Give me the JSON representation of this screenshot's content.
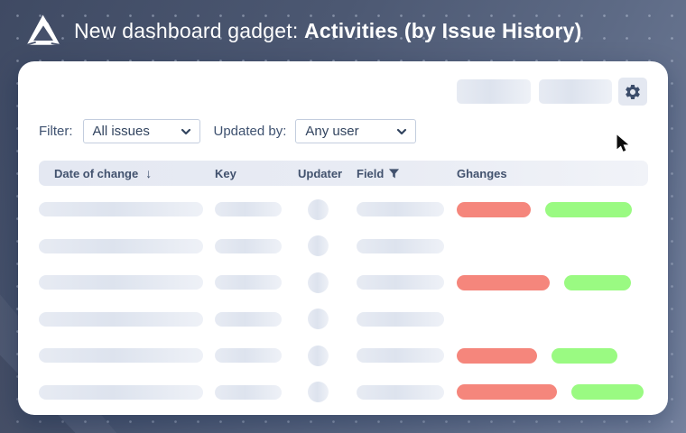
{
  "banner": {
    "title_prefix": "New dashboard gadget: ",
    "title_emphasis": "Activities (by Issue History)"
  },
  "filters": {
    "filter_label": "Filter:",
    "filter_value": "All issues",
    "updated_by_label": "Updated by:",
    "updated_by_value": "Any user"
  },
  "table": {
    "columns": [
      {
        "label": "Date of change",
        "icon": "sort-desc-arrow"
      },
      {
        "label": "Key",
        "icon": null
      },
      {
        "label": "Updater",
        "icon": null
      },
      {
        "label": "Field",
        "icon": "filter-funnel"
      },
      {
        "label": "Ghanges",
        "icon": null
      }
    ],
    "sort_indicator": "↓",
    "rows": [
      {
        "changes": {
          "removed_width": 82,
          "added_width": 96
        }
      },
      {
        "changes": null
      },
      {
        "changes": {
          "removed_width": 103,
          "added_width": 74
        }
      },
      {
        "changes": null
      },
      {
        "changes": {
          "removed_width": 89,
          "added_width": 73
        }
      },
      {
        "changes": {
          "removed_width": 111,
          "added_width": 80
        }
      }
    ]
  },
  "colors": {
    "removed_pill": "#f5867c",
    "added_pill": "#9afa82",
    "header_text": "#42526e"
  }
}
